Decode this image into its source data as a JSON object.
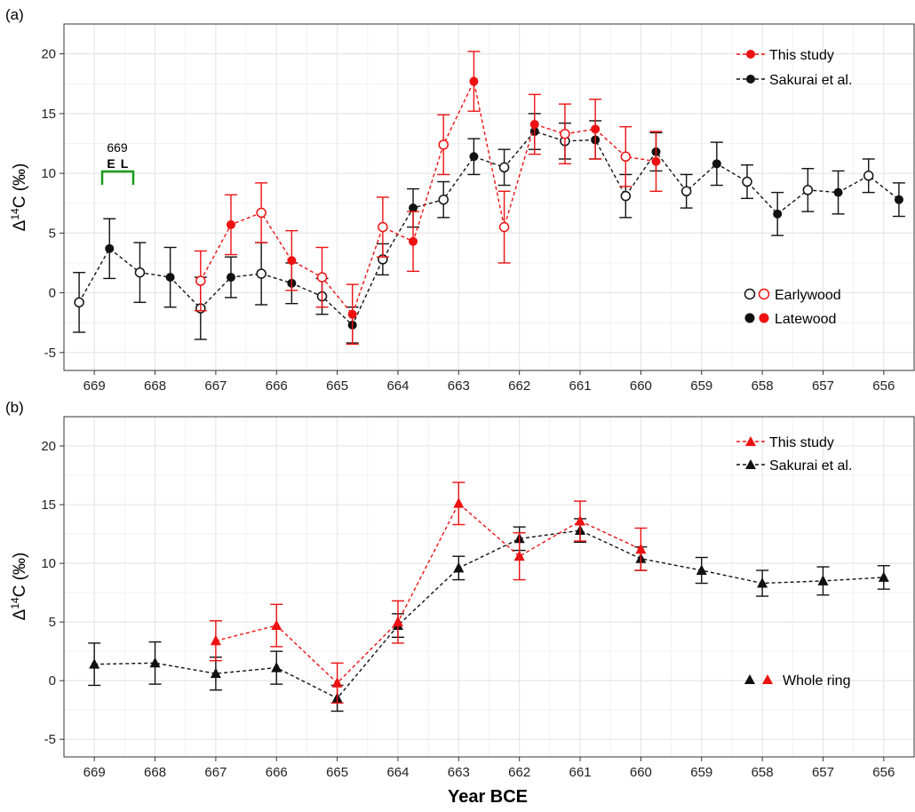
{
  "xlabel": "Year BCE",
  "colors": {
    "this_study": "#ee1111",
    "sakurai": "#111111",
    "bracket": "#1a9a1a",
    "grid": "#e6e6e6"
  },
  "chart_data": [
    {
      "type": "scatter",
      "panel_label": "(a)",
      "ylabel": "Δ14C (‰)",
      "xlabel": "Year BCE",
      "xlim": [
        669.5,
        655.5
      ],
      "x_reversed": true,
      "ylim": [
        -6.5,
        22.5
      ],
      "yticks": [
        -5,
        0,
        5,
        10,
        15,
        20
      ],
      "xticks": [
        669,
        668,
        667,
        666,
        665,
        664,
        663,
        662,
        661,
        660,
        659,
        658,
        657,
        656
      ],
      "grid": true,
      "legend_placement": "top-right",
      "legend": [
        "This study",
        "Sakurai et al."
      ],
      "marker_legend": {
        "earlywood": "Earlywood",
        "latewood": "Latewood"
      },
      "annotation": {
        "year": "669",
        "early": "E",
        "late": "L"
      },
      "series": [
        {
          "name": "This study",
          "color": "#ee1111",
          "points": [
            {
              "x": 667.0,
              "wood": "earlywood",
              "y": 1.0,
              "err": 2.5
            },
            {
              "x": 667.0,
              "wood": "latewood",
              "y": 5.7,
              "err": 2.5
            },
            {
              "x": 666.0,
              "wood": "earlywood",
              "y": 6.7,
              "err": 2.5
            },
            {
              "x": 666.0,
              "wood": "latewood",
              "y": 2.7,
              "err": 2.5
            },
            {
              "x": 665.0,
              "wood": "earlywood",
              "y": 1.3,
              "err": 2.5
            },
            {
              "x": 665.0,
              "wood": "latewood",
              "y": -1.8,
              "err": 2.5
            },
            {
              "x": 664.0,
              "wood": "earlywood",
              "y": 5.5,
              "err": 2.5
            },
            {
              "x": 664.0,
              "wood": "latewood",
              "y": 4.3,
              "err": 2.5
            },
            {
              "x": 663.0,
              "wood": "earlywood",
              "y": 12.4,
              "err": 2.5
            },
            {
              "x": 663.0,
              "wood": "latewood",
              "y": 17.7,
              "err": 2.5
            },
            {
              "x": 662.0,
              "wood": "earlywood",
              "y": 5.5,
              "err": 3.0
            },
            {
              "x": 662.0,
              "wood": "latewood",
              "y": 14.1,
              "err": 2.5
            },
            {
              "x": 661.0,
              "wood": "earlywood",
              "y": 13.3,
              "err": 2.5
            },
            {
              "x": 661.0,
              "wood": "latewood",
              "y": 13.7,
              "err": 2.5
            },
            {
              "x": 660.0,
              "wood": "earlywood",
              "y": 11.4,
              "err": 2.5
            },
            {
              "x": 660.0,
              "wood": "latewood",
              "y": 11.0,
              "err": 2.5
            }
          ]
        },
        {
          "name": "Sakurai et al.",
          "color": "#111111",
          "points": [
            {
              "x": 669.0,
              "wood": "earlywood",
              "y": -0.8,
              "err": 2.5
            },
            {
              "x": 669.0,
              "wood": "latewood",
              "y": 3.7,
              "err": 2.5
            },
            {
              "x": 668.0,
              "wood": "earlywood",
              "y": 1.7,
              "err": 2.5
            },
            {
              "x": 668.0,
              "wood": "latewood",
              "y": 1.3,
              "err": 2.5
            },
            {
              "x": 667.0,
              "wood": "earlywood",
              "y": -1.3,
              "err": 2.6
            },
            {
              "x": 667.0,
              "wood": "latewood",
              "y": 1.3,
              "err": 1.7
            },
            {
              "x": 666.0,
              "wood": "earlywood",
              "y": 1.6,
              "err": 2.6
            },
            {
              "x": 666.0,
              "wood": "latewood",
              "y": 0.8,
              "err": 1.7
            },
            {
              "x": 665.0,
              "wood": "earlywood",
              "y": -0.3,
              "err": 1.5
            },
            {
              "x": 665.0,
              "wood": "latewood",
              "y": -2.7,
              "err": 1.5
            },
            {
              "x": 664.0,
              "wood": "earlywood",
              "y": 2.8,
              "err": 1.3
            },
            {
              "x": 664.0,
              "wood": "latewood",
              "y": 7.1,
              "err": 1.6
            },
            {
              "x": 663.0,
              "wood": "earlywood",
              "y": 7.8,
              "err": 1.5
            },
            {
              "x": 663.0,
              "wood": "latewood",
              "y": 11.4,
              "err": 1.5
            },
            {
              "x": 662.0,
              "wood": "earlywood",
              "y": 10.5,
              "err": 1.5
            },
            {
              "x": 662.0,
              "wood": "latewood",
              "y": 13.5,
              "err": 1.5
            },
            {
              "x": 661.0,
              "wood": "earlywood",
              "y": 12.7,
              "err": 1.5
            },
            {
              "x": 661.0,
              "wood": "latewood",
              "y": 12.8,
              "err": 1.6
            },
            {
              "x": 660.0,
              "wood": "earlywood",
              "y": 8.1,
              "err": 1.8
            },
            {
              "x": 660.0,
              "wood": "latewood",
              "y": 11.8,
              "err": 1.6
            },
            {
              "x": 659.0,
              "wood": "earlywood",
              "y": 8.5,
              "err": 1.4
            },
            {
              "x": 659.0,
              "wood": "latewood",
              "y": 10.8,
              "err": 1.8
            },
            {
              "x": 658.0,
              "wood": "earlywood",
              "y": 9.3,
              "err": 1.4
            },
            {
              "x": 658.0,
              "wood": "latewood",
              "y": 6.6,
              "err": 1.8
            },
            {
              "x": 657.0,
              "wood": "earlywood",
              "y": 8.6,
              "err": 1.8
            },
            {
              "x": 657.0,
              "wood": "latewood",
              "y": 8.4,
              "err": 1.8
            },
            {
              "x": 656.0,
              "wood": "earlywood",
              "y": 9.8,
              "err": 1.4
            },
            {
              "x": 656.0,
              "wood": "latewood",
              "y": 7.8,
              "err": 1.4
            }
          ]
        }
      ]
    },
    {
      "type": "line",
      "panel_label": "(b)",
      "ylabel": "Δ14C (‰)",
      "xlabel": "Year BCE",
      "xlim": [
        669.5,
        655.5
      ],
      "x_reversed": true,
      "ylim": [
        -6.5,
        22.5
      ],
      "yticks": [
        -5,
        0,
        5,
        10,
        15,
        20
      ],
      "xticks": [
        669,
        668,
        667,
        666,
        665,
        664,
        663,
        662,
        661,
        660,
        659,
        658,
        657,
        656
      ],
      "grid": true,
      "legend_placement": "top-right",
      "legend": [
        "This study",
        "Sakurai et al."
      ],
      "marker_legend": {
        "whole": "Whole ring"
      },
      "series": [
        {
          "name": "This study",
          "color": "#ee1111",
          "points": [
            {
              "x": 667,
              "y": 3.4,
              "err": 1.7
            },
            {
              "x": 666,
              "y": 4.7,
              "err": 1.8
            },
            {
              "x": 665,
              "y": -0.2,
              "err": 1.7
            },
            {
              "x": 664,
              "y": 5.0,
              "err": 1.8
            },
            {
              "x": 663,
              "y": 15.1,
              "err": 1.8
            },
            {
              "x": 662,
              "y": 10.6,
              "err": 2.0
            },
            {
              "x": 661,
              "y": 13.6,
              "err": 1.7
            },
            {
              "x": 660,
              "y": 11.2,
              "err": 1.8
            }
          ]
        },
        {
          "name": "Sakurai et al.",
          "color": "#111111",
          "points": [
            {
              "x": 669,
              "y": 1.4,
              "err": 1.8
            },
            {
              "x": 668,
              "y": 1.5,
              "err": 1.8
            },
            {
              "x": 667,
              "y": 0.6,
              "err": 1.4
            },
            {
              "x": 666,
              "y": 1.1,
              "err": 1.4
            },
            {
              "x": 665,
              "y": -1.5,
              "err": 1.1
            },
            {
              "x": 664,
              "y": 4.7,
              "err": 1.0
            },
            {
              "x": 663,
              "y": 9.6,
              "err": 1.0
            },
            {
              "x": 662,
              "y": 12.1,
              "err": 1.0
            },
            {
              "x": 661,
              "y": 12.8,
              "err": 1.0
            },
            {
              "x": 660,
              "y": 10.4,
              "err": 1.0
            },
            {
              "x": 659,
              "y": 9.4,
              "err": 1.1
            },
            {
              "x": 658,
              "y": 8.3,
              "err": 1.1
            },
            {
              "x": 657,
              "y": 8.5,
              "err": 1.2
            },
            {
              "x": 656,
              "y": 8.8,
              "err": 1.0
            }
          ]
        }
      ]
    }
  ]
}
